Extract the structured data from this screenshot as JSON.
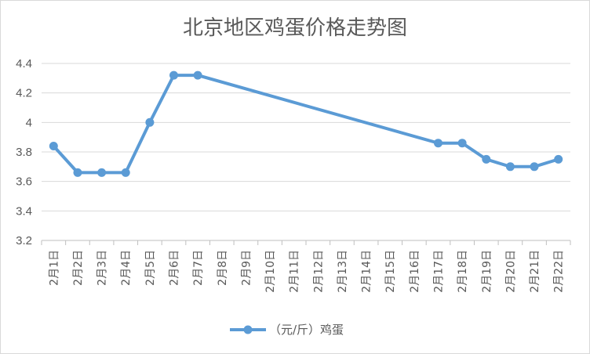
{
  "chart_data": {
    "type": "line",
    "title": "北京地区鸡蛋价格走势图",
    "xlabel": "",
    "ylabel": "",
    "ylim": [
      3.2,
      4.4
    ],
    "yticks": [
      "3.2",
      "3.4",
      "3.6",
      "3.8",
      "4",
      "4.2",
      "4.4"
    ],
    "grid": true,
    "legend_position": "bottom",
    "categories": [
      "2月1日",
      "2月2日",
      "2月3日",
      "2月4日",
      "2月5日",
      "2月6日",
      "2月7日",
      "2月8日",
      "2月9日",
      "2月10日",
      "2月11日",
      "2月12日",
      "2月13日",
      "2月14日",
      "2月15日",
      "2月16日",
      "2月17日",
      "2月18日",
      "2月19日",
      "2月20日",
      "2月21日",
      "2月22日"
    ],
    "series": [
      {
        "name": "（元/斤）鸡蛋",
        "color": "#5b9bd5",
        "values": [
          3.84,
          3.66,
          3.66,
          3.66,
          4.0,
          4.32,
          4.32,
          null,
          null,
          null,
          null,
          null,
          null,
          null,
          null,
          null,
          3.86,
          3.86,
          3.75,
          3.7,
          3.7,
          3.75
        ]
      }
    ]
  }
}
